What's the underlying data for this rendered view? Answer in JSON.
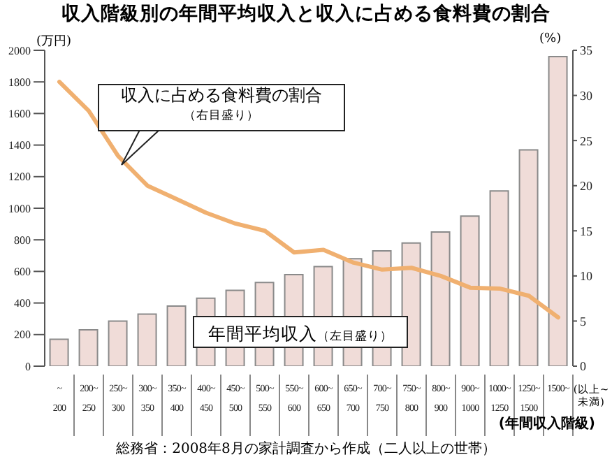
{
  "chart_data": {
    "type": "bar",
    "title": "収入階級別の年間平均収入と収入に占める食料費の割合",
    "ylabel": "(万円)",
    "y2label": "(%)",
    "xlabel": "(年間収入階級)",
    "annotations": [
      "(以上~未満)",
      "総務省：2008年8月の家計調査から作成（二人以上の世帯）"
    ],
    "categories": [
      "~200",
      "200~250",
      "250~300",
      "300~350",
      "350~400",
      "400~450",
      "450~500",
      "500~550",
      "550~600",
      "600~650",
      "650~700",
      "700~750",
      "750~800",
      "800~900",
      "900~1000",
      "1000~1250",
      "1250~1500",
      "1500~"
    ],
    "series": [
      {
        "name": "年間平均収入（左目盛り）",
        "color": "#f0dcd8",
        "values": [
          170,
          230,
          285,
          330,
          380,
          430,
          480,
          530,
          580,
          630,
          680,
          730,
          780,
          850,
          950,
          1110,
          1370,
          1960
        ]
      },
      {
        "name": "収入に占める食料費の割合（右目盛り）",
        "type": "line",
        "axis": "y2",
        "color": "#f0b070",
        "values": [
          31.5,
          28.3,
          23.3,
          20,
          18.5,
          17,
          15.8,
          15,
          12.6,
          12.9,
          11.5,
          10.7,
          10.9,
          10,
          8.7,
          8.6,
          7.8,
          5.4
        ]
      }
    ],
    "ylim": [
      0,
      2000
    ],
    "yticks": [
      0,
      200,
      400,
      600,
      800,
      1000,
      1200,
      1400,
      1600,
      1800,
      2000
    ],
    "y2lim": [
      0,
      35
    ],
    "y2ticks": [
      0,
      5,
      10,
      15,
      20,
      25,
      30,
      35
    ],
    "grid": false,
    "legend": false,
    "marker": "none",
    "line_style": "solid"
  }
}
